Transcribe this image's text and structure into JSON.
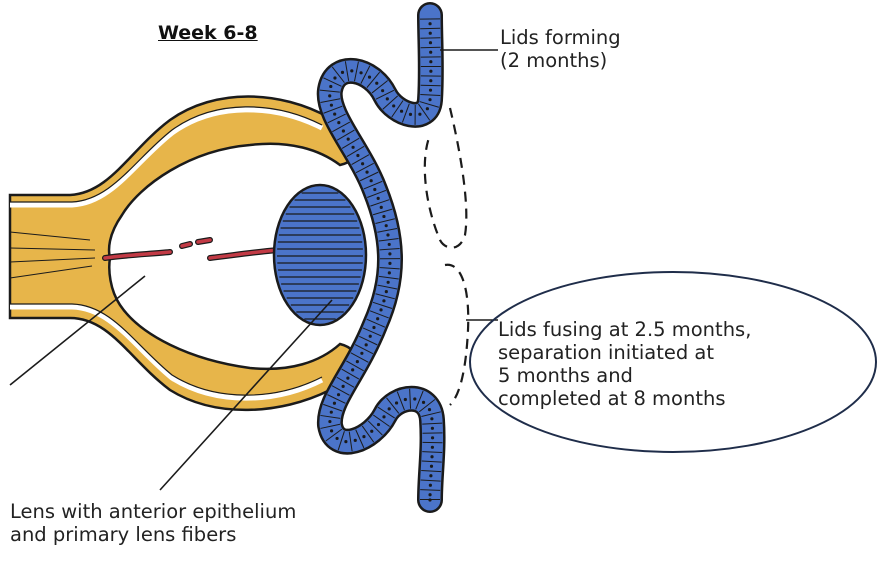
{
  "title": "Week 6-8",
  "labels": {
    "lids_forming": [
      "Lids forming",
      "(2 months)"
    ],
    "lids_fusing": [
      "Lids fusing at 2.5 months,",
      "separation initiated at",
      "5 months and",
      "completed at 8 months"
    ],
    "lens": [
      "Lens with anterior epithelium",
      "and primary lens fibers"
    ]
  },
  "colors": {
    "optic_cup": "#e7b54a",
    "ectoderm": "#4b74c9",
    "lens": "#4b74c9",
    "vessel": "#c23a45",
    "outline": "#1b1b1b"
  }
}
